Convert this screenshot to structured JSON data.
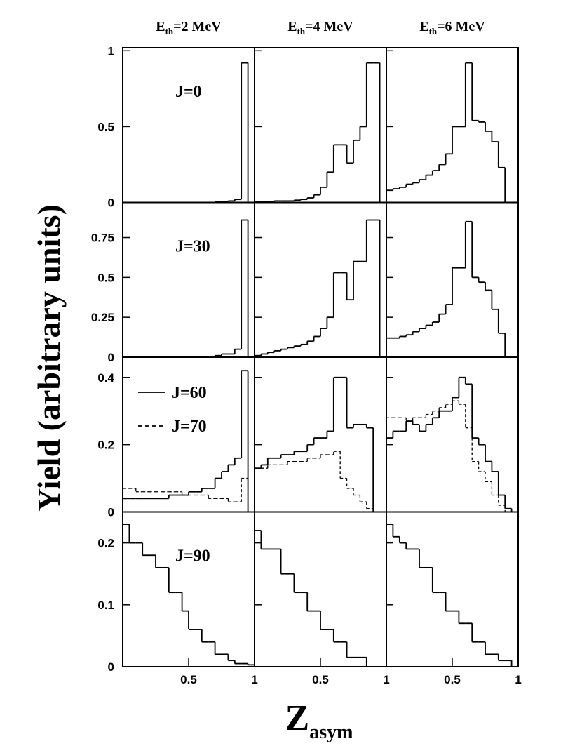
{
  "chart_data": {
    "type": "histogram",
    "ylabel": "Yield (arbitrary units)",
    "xlabel": {
      "main": "Z",
      "sub": "asym"
    },
    "xlim": [
      0,
      1
    ],
    "xticks": [
      0.5,
      1
    ],
    "bins": [
      0,
      0.05,
      0.1,
      0.15,
      0.2,
      0.25,
      0.3,
      0.35,
      0.4,
      0.45,
      0.5,
      0.55,
      0.6,
      0.65,
      0.7,
      0.75,
      0.8,
      0.85,
      0.9,
      0.95,
      1
    ],
    "color": "#000000",
    "columns": [
      {
        "main": "E",
        "sub": "th",
        "rest": "=2 MeV"
      },
      {
        "main": "E",
        "sub": "th",
        "rest": "=4 MeV"
      },
      {
        "main": "E",
        "sub": "th",
        "rest": "=6 MeV"
      }
    ],
    "rows": [
      {
        "ylim": [
          0,
          1.02
        ],
        "yticks": [
          0,
          0.5,
          1
        ],
        "legend": false,
        "series_names": [
          "J=0"
        ],
        "styles": [
          "solid"
        ],
        "panels": [
          [
            [
              0,
              0,
              0,
              0,
              0,
              0,
              0,
              0,
              0,
              0,
              0,
              0,
              0,
              0,
              0.003,
              0.005,
              0.01,
              0.02,
              0.92,
              0
            ]
          ],
          [
            [
              0.005,
              0.005,
              0.005,
              0.01,
              0.01,
              0.01,
              0.015,
              0.02,
              0.03,
              0.05,
              0.1,
              0.2,
              0.38,
              0.38,
              0.26,
              0.41,
              0.5,
              0.92,
              0.92,
              0
            ]
          ],
          [
            [
              0.08,
              0.09,
              0.1,
              0.12,
              0.13,
              0.15,
              0.18,
              0.21,
              0.25,
              0.32,
              0.5,
              0.5,
              0.92,
              0.54,
              0.53,
              0.47,
              0.4,
              0.23,
              0,
              0
            ]
          ]
        ]
      },
      {
        "ylim": [
          0,
          0.97
        ],
        "yticks": [
          0,
          0.25,
          0.5,
          0.75
        ],
        "legend": false,
        "series_names": [
          "J=30"
        ],
        "styles": [
          "solid"
        ],
        "panels": [
          [
            [
              0,
              0,
              0,
              0,
              0,
              0,
              0,
              0,
              0,
              0,
              0,
              0,
              0,
              0,
              0.01,
              0.02,
              0.02,
              0.05,
              0.86,
              0
            ]
          ],
          [
            [
              0.01,
              0.02,
              0.03,
              0.04,
              0.05,
              0.06,
              0.07,
              0.08,
              0.1,
              0.13,
              0.18,
              0.25,
              0.53,
              0.53,
              0.36,
              0.6,
              0.6,
              0.86,
              0.86,
              0
            ]
          ],
          [
            [
              0.12,
              0.12,
              0.13,
              0.14,
              0.16,
              0.18,
              0.2,
              0.22,
              0.27,
              0.33,
              0.56,
              0.56,
              0.85,
              0.5,
              0.47,
              0.42,
              0.3,
              0.15,
              0,
              0
            ]
          ]
        ]
      },
      {
        "ylim": [
          0,
          0.46
        ],
        "yticks": [
          0,
          0.2,
          0.4
        ],
        "legend": true,
        "series_names": [
          "J=60",
          "J=70"
        ],
        "styles": [
          "solid",
          "dashed"
        ],
        "panels": [
          [
            [
              0.04,
              0.04,
              0.04,
              0.04,
              0.04,
              0.04,
              0.04,
              0.05,
              0.05,
              0.05,
              0.06,
              0.06,
              0.07,
              0.07,
              0.1,
              0.12,
              0.14,
              0.16,
              0.42,
              0
            ],
            [
              0.07,
              0.07,
              0.06,
              0.06,
              0.06,
              0.06,
              0.06,
              0.06,
              0.06,
              0.05,
              0.05,
              0.05,
              0.05,
              0.04,
              0.04,
              0.04,
              0.03,
              0.03,
              0.1,
              0
            ]
          ],
          [
            [
              0.13,
              0.14,
              0.16,
              0.16,
              0.17,
              0.17,
              0.18,
              0.18,
              0.2,
              0.22,
              0.22,
              0.24,
              0.4,
              0.4,
              0.25,
              0.26,
              0.26,
              0.25,
              0,
              0
            ],
            [
              0.13,
              0.13,
              0.14,
              0.14,
              0.14,
              0.15,
              0.15,
              0.15,
              0.16,
              0.16,
              0.17,
              0.17,
              0.18,
              0.1,
              0.07,
              0.05,
              0.03,
              0.01,
              0,
              0
            ]
          ],
          [
            [
              0.22,
              0.24,
              0.24,
              0.27,
              0.26,
              0.24,
              0.26,
              0.28,
              0.3,
              0.3,
              0.34,
              0.4,
              0.38,
              0.22,
              0.2,
              0.15,
              0.12,
              0.05,
              0.01,
              0
            ],
            [
              0.28,
              0.28,
              0.28,
              0.27,
              0.28,
              0.28,
              0.29,
              0.3,
              0.31,
              0.32,
              0.33,
              0.32,
              0.25,
              0.15,
              0.12,
              0.09,
              0.05,
              0.02,
              0,
              0
            ]
          ]
        ]
      },
      {
        "ylim": [
          0,
          0.25
        ],
        "yticks": [
          0,
          0.1,
          0.2
        ],
        "legend": false,
        "series_names": [
          "J=90"
        ],
        "styles": [
          "solid"
        ],
        "panels": [
          [
            [
              0.23,
              0.2,
              0.2,
              0.18,
              0.18,
              0.16,
              0.16,
              0.12,
              0.12,
              0.09,
              0.06,
              0.06,
              0.04,
              0.04,
              0.02,
              0.02,
              0.01,
              0.005,
              0.005,
              0.003
            ]
          ],
          [
            [
              0.22,
              0.19,
              0.19,
              0.19,
              0.15,
              0.15,
              0.12,
              0.12,
              0.09,
              0.09,
              0.06,
              0.06,
              0.04,
              0.04,
              0.015,
              0.015,
              0.015,
              0,
              0,
              0
            ]
          ],
          [
            [
              0.23,
              0.21,
              0.2,
              0.19,
              0.19,
              0.16,
              0.16,
              0.12,
              0.12,
              0.09,
              0.09,
              0.07,
              0.07,
              0.04,
              0.04,
              0.02,
              0.02,
              0.01,
              0.01,
              0
            ]
          ]
        ]
      }
    ]
  }
}
